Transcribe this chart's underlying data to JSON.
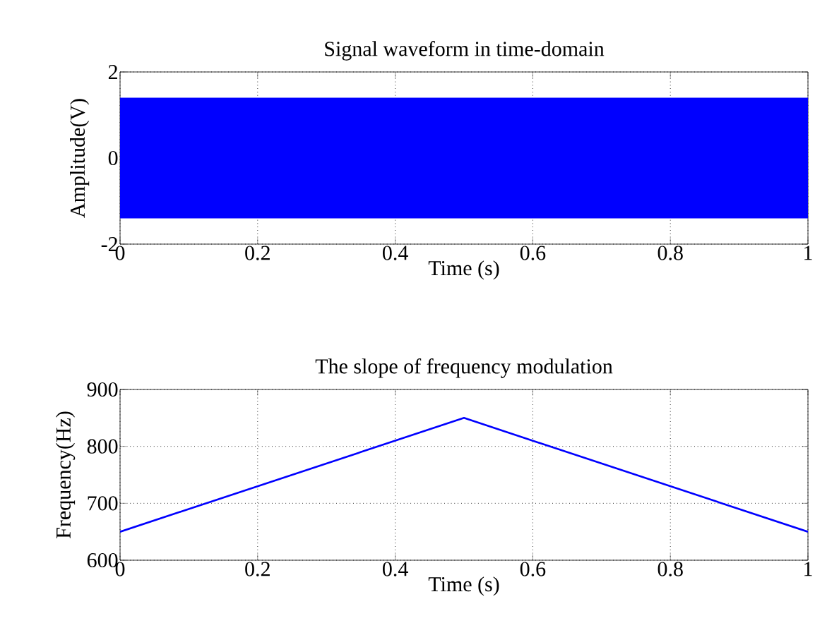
{
  "chart_data": [
    {
      "type": "line",
      "title": "Signal waveform in time-domain",
      "xlabel": "Time (s)",
      "ylabel": "Amplitude(V)",
      "xlim": [
        0,
        1
      ],
      "xticks": [
        0,
        0.2,
        0.4,
        0.6,
        0.8,
        1
      ],
      "ylim": [
        -2,
        2
      ],
      "yticks": [
        -2,
        0,
        2
      ],
      "grid": true,
      "series": [
        {
          "color": "#0000ff",
          "x": [
            0,
            1
          ],
          "values": [
            null,
            null
          ],
          "lower": [
            -1.4,
            -1.4
          ],
          "upper": [
            1.4,
            1.4
          ]
        }
      ]
    },
    {
      "type": "line",
      "title": "The slope of frequency modulation",
      "xlabel": "Time (s)",
      "ylabel": "Frequency(Hz)",
      "xlim": [
        0,
        1
      ],
      "xticks": [
        0,
        0.2,
        0.4,
        0.6,
        0.8,
        1
      ],
      "ylim": [
        600,
        900
      ],
      "yticks": [
        600,
        700,
        800,
        900
      ],
      "grid": true,
      "series": [
        {
          "color": "#0000ff",
          "x": [
            0,
            0.5,
            1
          ],
          "values": [
            650,
            850,
            650
          ]
        }
      ]
    }
  ]
}
